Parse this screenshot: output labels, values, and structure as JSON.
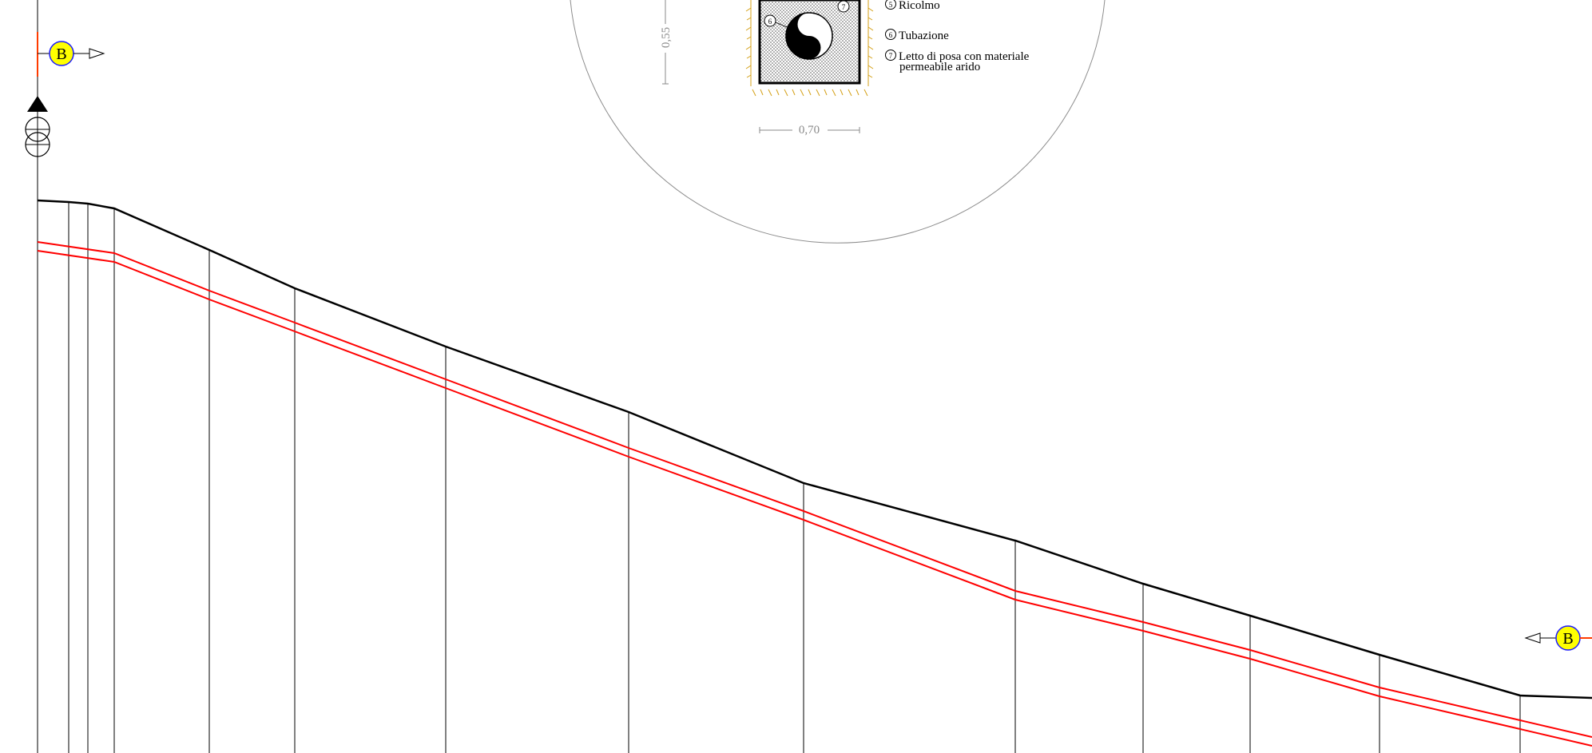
{
  "section_marker": {
    "letter": "B",
    "fill": "#ffff00",
    "ring": "#1a1aff",
    "tick": "#ff3b00"
  },
  "detail": {
    "legend": [
      {
        "num": "5",
        "text": "Ricolmo"
      },
      {
        "num": "6",
        "text": "Tubazione"
      },
      {
        "num": "7",
        "text": "Letto di posa con materiale",
        "text2": "permeabile arido"
      }
    ],
    "callouts": [
      "6",
      "7"
    ],
    "dim_height": "0,55",
    "dim_width": "0,70",
    "backfill_color": "#d4a017",
    "dim_color": "#8a8a8a"
  },
  "profile": {
    "ground_color": "#000000",
    "pipe_color": "#ff0000"
  }
}
